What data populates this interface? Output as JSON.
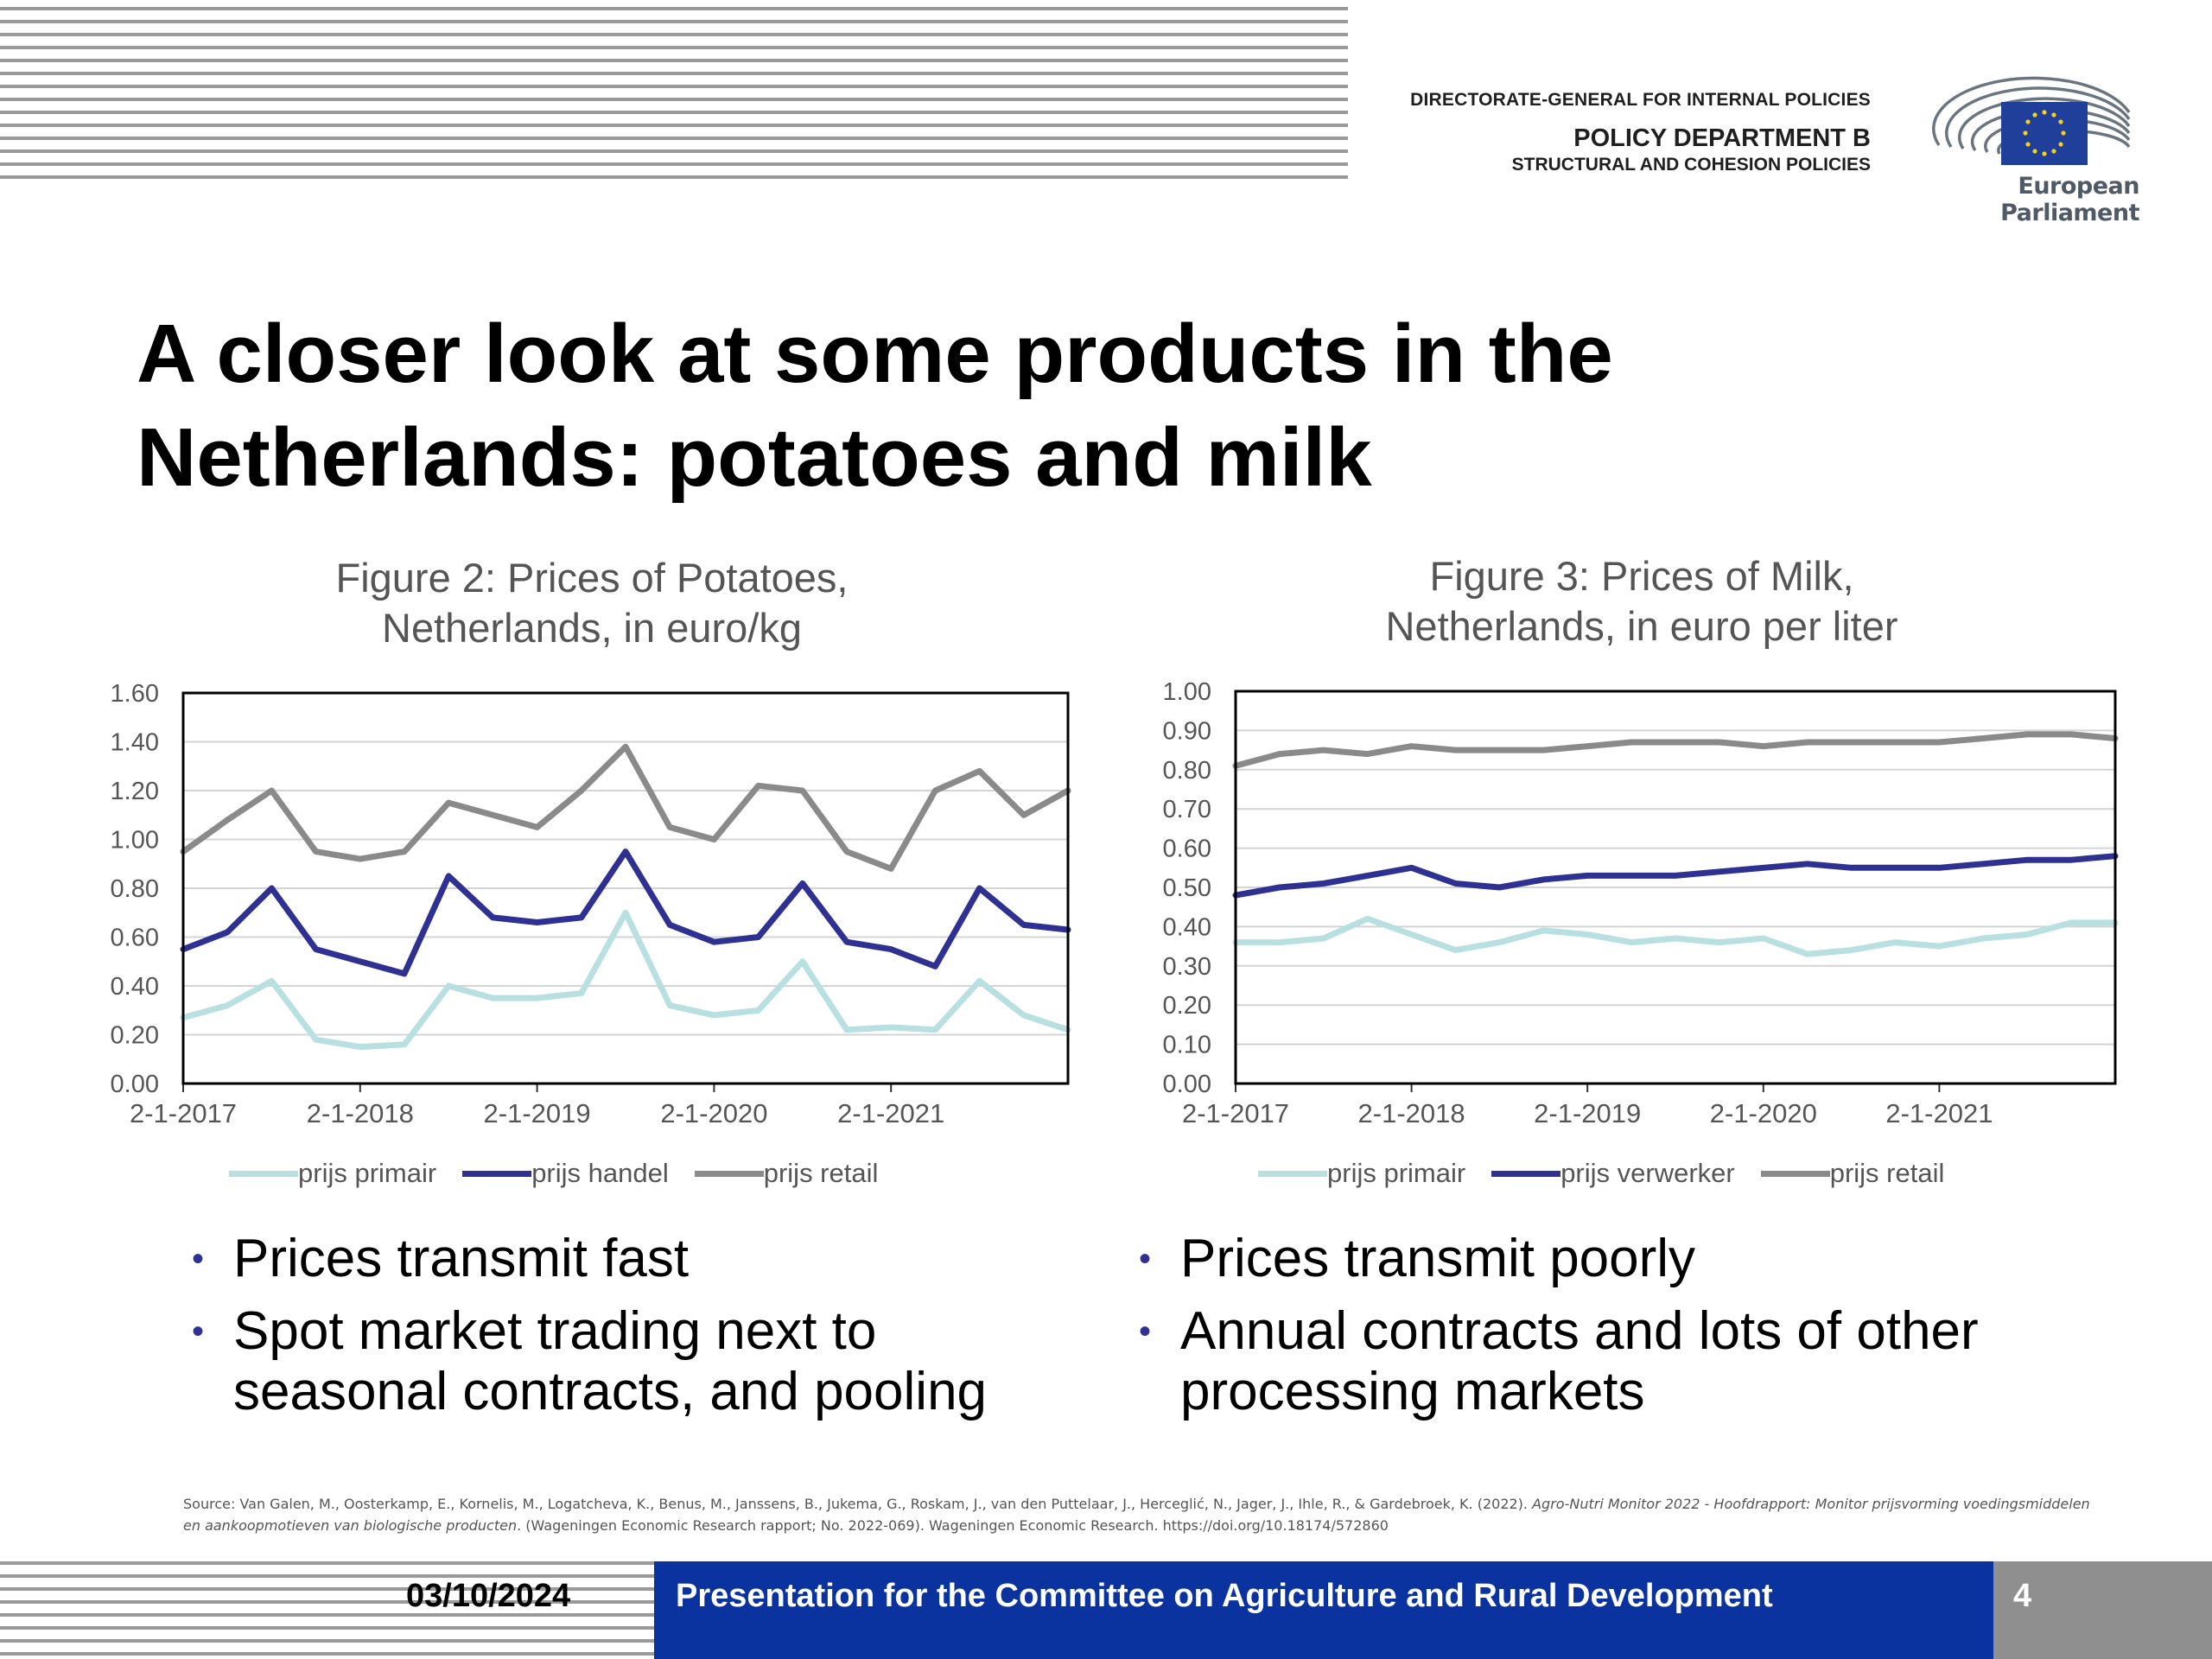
{
  "header": {
    "dg": "DIRECTORATE-GENERAL FOR INTERNAL POLICIES",
    "department": "POLICY DEPARTMENT B",
    "subdepartment": "STRUCTURAL AND COHESION POLICIES",
    "logo_name": "European Parliament",
    "logo_icon": "european-parliament-hemicycle-eu-flag"
  },
  "slide": {
    "title_line1": "A closer look at some products in the",
    "title_line2": "Netherlands: potatoes and milk"
  },
  "colors": {
    "primair": "#b8e0e1",
    "handel": "#2e3192",
    "retail": "#8a8a8a",
    "bullet": "#2e3192",
    "footer": "#0b33a0"
  },
  "chart_data": [
    {
      "type": "line",
      "title_line1": "Figure 2: Prices of Potatoes,",
      "title_line2": "Netherlands, in euro/kg",
      "x_ticks": [
        "2-1-2017",
        "2-1-2018",
        "2-1-2019",
        "2-1-2020",
        "2-1-2021"
      ],
      "x": [
        2017.0,
        2017.25,
        2017.5,
        2017.75,
        2018.0,
        2018.25,
        2018.5,
        2018.75,
        2019.0,
        2019.25,
        2019.5,
        2019.75,
        2020.0,
        2020.25,
        2020.5,
        2020.75,
        2021.0,
        2021.25,
        2021.5,
        2021.75,
        2022.0
      ],
      "xlim": [
        2017.0,
        2022.0
      ],
      "ylim": [
        0,
        1.6
      ],
      "y_ticks": [
        "0.00",
        "0.20",
        "0.40",
        "0.60",
        "0.80",
        "1.00",
        "1.20",
        "1.40",
        "1.60"
      ],
      "grid": true,
      "legend_position": "bottom",
      "series": [
        {
          "name": "prijs primair",
          "values": [
            0.27,
            0.32,
            0.42,
            0.18,
            0.15,
            0.16,
            0.4,
            0.35,
            0.35,
            0.37,
            0.7,
            0.32,
            0.28,
            0.3,
            0.5,
            0.22,
            0.23,
            0.22,
            0.42,
            0.28,
            0.22
          ]
        },
        {
          "name": "prijs handel",
          "values": [
            0.55,
            0.62,
            0.8,
            0.55,
            0.5,
            0.45,
            0.85,
            0.68,
            0.66,
            0.68,
            0.95,
            0.65,
            0.58,
            0.6,
            0.82,
            0.58,
            0.55,
            0.48,
            0.8,
            0.65,
            0.63
          ]
        },
        {
          "name": "prijs retail",
          "values": [
            0.95,
            1.08,
            1.2,
            0.95,
            0.92,
            0.95,
            1.15,
            1.1,
            1.05,
            1.2,
            1.38,
            1.05,
            1.0,
            1.22,
            1.2,
            0.95,
            0.88,
            1.2,
            1.28,
            1.1,
            1.2
          ]
        }
      ]
    },
    {
      "type": "line",
      "title_line1": "Figure 3:  Prices of Milk,",
      "title_line2": "Netherlands, in euro per liter",
      "x_ticks": [
        "2-1-2017",
        "2-1-2018",
        "2-1-2019",
        "2-1-2020",
        "2-1-2021"
      ],
      "x": [
        2017.0,
        2017.25,
        2017.5,
        2017.75,
        2018.0,
        2018.25,
        2018.5,
        2018.75,
        2019.0,
        2019.25,
        2019.5,
        2019.75,
        2020.0,
        2020.25,
        2020.5,
        2020.75,
        2021.0,
        2021.25,
        2021.5,
        2021.75,
        2022.0
      ],
      "xlim": [
        2017.0,
        2022.0
      ],
      "ylim": [
        0,
        1.0
      ],
      "y_ticks": [
        "0.00",
        "0.10",
        "0.20",
        "0.30",
        "0.40",
        "0.50",
        "0.60",
        "0.70",
        "0.80",
        "0.90",
        "1.00"
      ],
      "grid": true,
      "legend_position": "bottom",
      "series": [
        {
          "name": "prijs primair",
          "values": [
            0.36,
            0.36,
            0.37,
            0.42,
            0.38,
            0.34,
            0.36,
            0.39,
            0.38,
            0.36,
            0.37,
            0.36,
            0.37,
            0.33,
            0.34,
            0.36,
            0.35,
            0.37,
            0.38,
            0.41,
            0.41
          ]
        },
        {
          "name": "prijs verwerker",
          "values": [
            0.48,
            0.5,
            0.51,
            0.53,
            0.55,
            0.51,
            0.5,
            0.52,
            0.53,
            0.53,
            0.53,
            0.54,
            0.55,
            0.56,
            0.55,
            0.55,
            0.55,
            0.56,
            0.57,
            0.57,
            0.58
          ]
        },
        {
          "name": "prijs retail",
          "values": [
            0.81,
            0.84,
            0.85,
            0.84,
            0.86,
            0.85,
            0.85,
            0.85,
            0.86,
            0.87,
            0.87,
            0.87,
            0.86,
            0.87,
            0.87,
            0.87,
            0.87,
            0.88,
            0.89,
            0.89,
            0.88
          ]
        }
      ]
    }
  ],
  "bullets_left": [
    "Prices transmit fast",
    "Spot market trading next to",
    "seasonal contracts, and pooling"
  ],
  "bullets_right": [
    "Prices transmit poorly",
    "Annual contracts and lots of other",
    "processing markets"
  ],
  "bullet_glyph": "•",
  "source": {
    "prefix": "Source: Van Galen, M., Oosterkamp, E., Kornelis, M., Logatcheva, K., Benus, M., Janssens, B., Jukema, G., Roskam, J., van den Puttelaar, J., Herceglić, N., Jager, J., Ihle, R., & Gardebroek, K. (2022).",
    "italic": "Agro-Nutri Monitor 2022 - Hoofdrapport: Monitor prijsvorming voedingsmiddelen en aankoopmotieven van biologische producten",
    "suffix": ". (Wageningen Economic Research rapport; No. 2022-069). Wageningen Economic Research. https://doi.org/10.18174/572860"
  },
  "footer": {
    "date": "03/10/2024",
    "text": "Presentation for the Committee on Agriculture and Rural Development",
    "page": "4"
  }
}
